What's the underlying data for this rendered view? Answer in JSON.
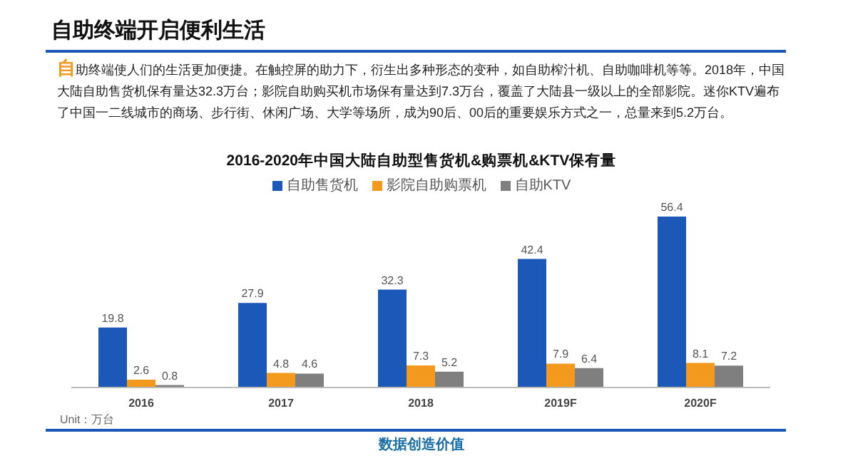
{
  "chart_data": {
    "type": "bar",
    "title": "2016-2020年中国大陆自助型售货机&购票机&KTV保有量",
    "categories": [
      "2016",
      "2017",
      "2018",
      "2019F",
      "2020F"
    ],
    "series": [
      {
        "name": "自助售货机",
        "color": "#1b58b8",
        "values": [
          19.8,
          27.9,
          32.3,
          42.4,
          56.4
        ]
      },
      {
        "name": "影院自助购票机",
        "color": "#f39a1e",
        "values": [
          2.6,
          4.8,
          7.3,
          7.9,
          8.1
        ]
      },
      {
        "name": "自助KTV",
        "color": "#7f7f7f",
        "values": [
          0.8,
          4.6,
          5.2,
          6.4,
          7.2
        ]
      }
    ],
    "data_labels": true,
    "legend": "top",
    "annotations": [
      "自助终端开启便利生活",
      "自助终端使人们的生活更加便捷。在触控屏的助力下，衍生出多种形态的变种，如自助榨汁机、自助咖啡机等等。2018年，中国大陆自助售货机保有量达32.3万台；影院自助购买机市场保有量达到7.3万台，覆盖了大陆县一级以上的全部影院。迷你KTV遍布了中国一二线城市的商场、步行街、休闲广场、大学等场所，成为90后、00后的重要娱乐方式之一，总量来到5.2万台。",
      "Unit：万台",
      "数据创造价值"
    ]
  }
}
